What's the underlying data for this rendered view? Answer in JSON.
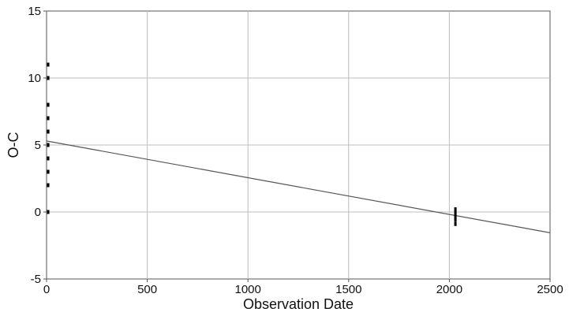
{
  "chart_data": {
    "type": "scatter",
    "title": "",
    "xlabel": "Observation Date",
    "ylabel": "O-C",
    "xlim": [
      0,
      2500
    ],
    "ylim": [
      -5,
      15
    ],
    "xticks": [
      0,
      500,
      1000,
      1500,
      2000,
      2500
    ],
    "yticks": [
      -5,
      0,
      5,
      10,
      15
    ],
    "xtick_labels": [
      "0",
      "500",
      "1000",
      "1500",
      "2000",
      "2500"
    ],
    "ytick_labels": [
      "-5",
      "0",
      "5",
      "10",
      "15"
    ],
    "grid": true,
    "legend": "none",
    "series": [
      {
        "kind": "points",
        "marker": "short vertical dash",
        "color": "#000000",
        "x": [
          8,
          8,
          8,
          8,
          8,
          8,
          8,
          8,
          8,
          8,
          8,
          8,
          8,
          8,
          8,
          8,
          8,
          8,
          2030,
          2030,
          2030,
          2030,
          2030,
          2030
        ],
        "y": [
          11,
          10,
          8,
          7,
          6,
          6,
          5,
          5,
          4,
          3,
          3,
          2,
          0,
          10,
          8,
          6,
          5,
          3,
          0.2,
          0,
          -0.2,
          -0.4,
          -0.6,
          -0.9
        ]
      },
      {
        "kind": "line",
        "color": "#555555",
        "x": [
          0,
          2500
        ],
        "y": [
          5.3,
          -1.55
        ]
      }
    ]
  }
}
